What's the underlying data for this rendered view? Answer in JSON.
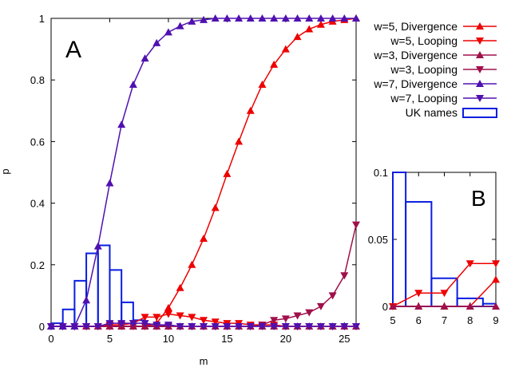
{
  "chart_data": [
    {
      "panel_label": "A",
      "type": "line",
      "xlabel": "m",
      "ylabel": "p",
      "xlim": [
        0,
        26
      ],
      "ylim": [
        0,
        1
      ],
      "xticks": [
        "0",
        "5",
        "10",
        "15",
        "20",
        "25"
      ],
      "yticks": [
        "0",
        "0.2",
        "0.4",
        "0.6",
        "0.8",
        "1"
      ],
      "legend_position": "right",
      "series": [
        {
          "name": "w=5, Divergence",
          "color": "#ee0000",
          "marker": "triangle-up",
          "x": [
            0,
            1,
            2,
            3,
            4,
            5,
            6,
            7,
            8,
            9,
            10,
            11,
            12,
            13,
            14,
            15,
            16,
            17,
            18,
            19,
            20,
            21,
            22,
            23,
            24,
            25,
            26
          ],
          "values": [
            0,
            0,
            0,
            0,
            0,
            0,
            0,
            0,
            0,
            0.01,
            0.06,
            0.125,
            0.2,
            0.285,
            0.385,
            0.495,
            0.6,
            0.7,
            0.785,
            0.85,
            0.9,
            0.94,
            0.965,
            0.98,
            0.99,
            0.995,
            1.0
          ]
        },
        {
          "name": "w=5, Looping",
          "color": "#ee0000",
          "marker": "triangle-down",
          "x": [
            0,
            1,
            2,
            3,
            4,
            5,
            6,
            7,
            8,
            9,
            10,
            11,
            12,
            13,
            14,
            15,
            16,
            17,
            18,
            19,
            20,
            21,
            22,
            23,
            24,
            25,
            26
          ],
          "values": [
            0,
            0,
            0,
            0,
            0,
            0.005,
            0.005,
            0.01,
            0.03,
            0.03,
            0.04,
            0.035,
            0.03,
            0.02,
            0.015,
            0.01,
            0.01,
            0.005,
            0.005,
            0.005,
            0,
            0,
            0,
            0,
            0,
            0,
            0
          ]
        },
        {
          "name": "w=3, Divergence",
          "color": "#a0104a",
          "marker": "triangle-up",
          "x": [
            0,
            1,
            2,
            3,
            4,
            5,
            6,
            7,
            8,
            9,
            10,
            11,
            12,
            13,
            14,
            15,
            16,
            17,
            18,
            19,
            20,
            21,
            22,
            23,
            24,
            25,
            26
          ],
          "values": [
            0,
            0,
            0,
            0,
            0,
            0,
            0,
            0,
            0,
            0,
            0,
            0,
            0,
            0,
            0,
            0,
            0,
            0,
            0,
            0,
            0,
            0,
            0,
            0,
            0,
            0,
            0
          ]
        },
        {
          "name": "w=3, Looping",
          "color": "#a0104a",
          "marker": "triangle-down",
          "x": [
            0,
            1,
            2,
            3,
            4,
            5,
            6,
            7,
            8,
            9,
            10,
            11,
            12,
            13,
            14,
            15,
            16,
            17,
            18,
            19,
            20,
            21,
            22,
            23,
            24,
            25,
            26
          ],
          "values": [
            0,
            0,
            0,
            0,
            0,
            0,
            0,
            0,
            0,
            0,
            0,
            0,
            0,
            0,
            0,
            0,
            0,
            0,
            0.005,
            0.02,
            0.025,
            0.035,
            0.045,
            0.065,
            0.1,
            0.165,
            0.33
          ]
        },
        {
          "name": "w=7, Divergence",
          "color": "#5010b0",
          "marker": "triangle-up",
          "x": [
            0,
            1,
            2,
            3,
            4,
            5,
            6,
            7,
            8,
            9,
            10,
            11,
            12,
            13,
            14,
            15,
            16,
            17,
            18,
            19,
            20,
            21,
            22,
            23,
            24,
            25,
            26
          ],
          "values": [
            0,
            0,
            0,
            0.085,
            0.26,
            0.465,
            0.655,
            0.785,
            0.87,
            0.92,
            0.955,
            0.975,
            0.99,
            0.995,
            1.0,
            1.0,
            1.0,
            1.0,
            1.0,
            1.0,
            1.0,
            1.0,
            1.0,
            1.0,
            1.0,
            1.0,
            1.0
          ]
        },
        {
          "name": "w=7, Looping",
          "color": "#5010b0",
          "marker": "triangle-down",
          "x": [
            0,
            1,
            2,
            3,
            4,
            5,
            6,
            7,
            8,
            9,
            10,
            11,
            12,
            13,
            14,
            15,
            16,
            17,
            18,
            19,
            20,
            21,
            22,
            23,
            24,
            25,
            26
          ],
          "values": [
            0,
            0,
            0,
            0,
            0,
            0.01,
            0.01,
            0.01,
            0.01,
            0.005,
            0.005,
            0,
            0,
            0,
            0,
            0,
            0,
            0,
            0,
            0,
            0,
            0,
            0,
            0,
            0,
            0,
            0
          ]
        }
      ],
      "histogram": {
        "name": "UK names",
        "color": "#0a1ee0",
        "bins": [
          [
            0,
            1
          ],
          [
            1,
            2
          ],
          [
            2,
            3
          ],
          [
            3,
            4
          ],
          [
            4,
            5
          ],
          [
            5,
            6
          ],
          [
            6,
            7
          ],
          [
            7,
            8
          ],
          [
            8,
            9
          ],
          [
            9,
            10
          ]
        ],
        "values": [
          0.01,
          0.055,
          0.148,
          0.237,
          0.263,
          0.183,
          0.078,
          0.02,
          0.006,
          0.002
        ]
      }
    },
    {
      "panel_label": "B",
      "type": "line",
      "xlim": [
        5,
        9
      ],
      "ylim": [
        0,
        0.1
      ],
      "xticks": [
        "5",
        "6",
        "7",
        "8",
        "9"
      ],
      "yticks": [
        "0",
        "0.05",
        "0.1"
      ],
      "series": [
        {
          "name": "w=5, Divergence",
          "color": "#ee0000",
          "marker": "triangle-up",
          "x": [
            5,
            6,
            7,
            8,
            9
          ],
          "values": [
            0,
            0,
            0,
            0,
            0.02
          ]
        },
        {
          "name": "w=5, Looping",
          "color": "#ee0000",
          "marker": "triangle-down",
          "x": [
            5,
            6,
            7,
            8,
            9
          ],
          "values": [
            0,
            0.01,
            0.01,
            0.032,
            0.032
          ]
        },
        {
          "name": "w=3, Divergence",
          "color": "#a0104a",
          "marker": "triangle-up",
          "x": [
            5,
            6,
            7,
            8,
            9
          ],
          "values": [
            0,
            0,
            0,
            0,
            0
          ]
        }
      ],
      "histogram": {
        "name": "UK names",
        "color": "#0a1ee0",
        "bins": [
          [
            5,
            5.5
          ],
          [
            5.5,
            6.5
          ],
          [
            6.5,
            7.5
          ],
          [
            7.5,
            8.5
          ],
          [
            8.5,
            9
          ]
        ],
        "values": [
          0.1,
          0.078,
          0.021,
          0.006,
          0.002
        ]
      }
    }
  ]
}
